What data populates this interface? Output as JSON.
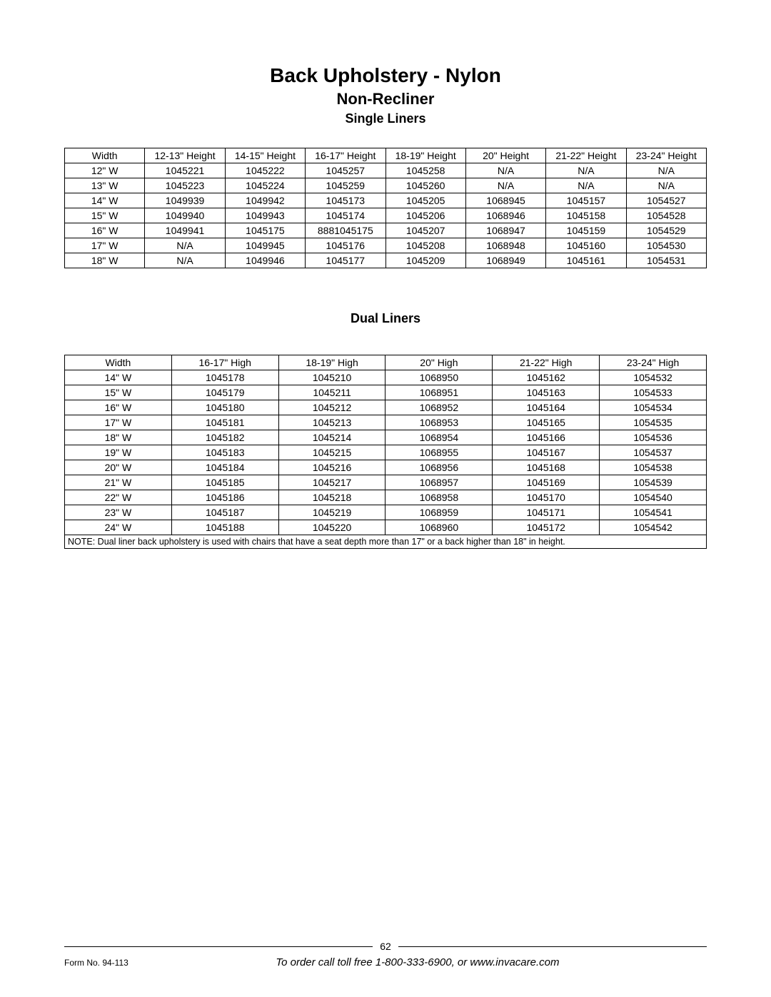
{
  "title": "Back Upholstery - Nylon",
  "subtitle": "Non-Recliner",
  "section1_heading": "Single Liners",
  "section2_heading": "Dual Liners",
  "table1": {
    "columns": [
      "Width",
      "12-13\" Height",
      "14-15\" Height",
      "16-17\" Height",
      "18-19\" Height",
      "20\" Height",
      "21-22\" Height",
      "23-24\" Height"
    ],
    "rows": [
      [
        "12\" W",
        "1045221",
        "1045222",
        "1045257",
        "1045258",
        "N/A",
        "N/A",
        "N/A"
      ],
      [
        "13\" W",
        "1045223",
        "1045224",
        "1045259",
        "1045260",
        "N/A",
        "N/A",
        "N/A"
      ],
      [
        "14\" W",
        "1049939",
        "1049942",
        "1045173",
        "1045205",
        "1068945",
        "1045157",
        "1054527"
      ],
      [
        "15\" W",
        "1049940",
        "1049943",
        "1045174",
        "1045206",
        "1068946",
        "1045158",
        "1054528"
      ],
      [
        "16\" W",
        "1049941",
        "1045175",
        "8881045175",
        "1045207",
        "1068947",
        "1045159",
        "1054529"
      ],
      [
        "17\" W",
        "N/A",
        "1049945",
        "1045176",
        "1045208",
        "1068948",
        "1045160",
        "1054530"
      ],
      [
        "18\" W",
        "N/A",
        "1049946",
        "1045177",
        "1045209",
        "1068949",
        "1045161",
        "1054531"
      ]
    ]
  },
  "table2": {
    "columns": [
      "Width",
      "16-17\" High",
      "18-19\" High",
      "20\" High",
      "21-22\" High",
      "23-24\" High"
    ],
    "rows": [
      [
        "14\" W",
        "1045178",
        "1045210",
        "1068950",
        "1045162",
        "1054532"
      ],
      [
        "15\" W",
        "1045179",
        "1045211",
        "1068951",
        "1045163",
        "1054533"
      ],
      [
        "16\" W",
        "1045180",
        "1045212",
        "1068952",
        "1045164",
        "1054534"
      ],
      [
        "17\" W",
        "1045181",
        "1045213",
        "1068953",
        "1045165",
        "1054535"
      ],
      [
        "18\" W",
        "1045182",
        "1045214",
        "1068954",
        "1045166",
        "1054536"
      ],
      [
        "19\" W",
        "1045183",
        "1045215",
        "1068955",
        "1045167",
        "1054537"
      ],
      [
        "20\" W",
        "1045184",
        "1045216",
        "1068956",
        "1045168",
        "1054538"
      ],
      [
        "21\" W",
        "1045185",
        "1045217",
        "1068957",
        "1045169",
        "1054539"
      ],
      [
        "22\" W",
        "1045186",
        "1045218",
        "1068958",
        "1045170",
        "1054540"
      ],
      [
        "23\" W",
        "1045187",
        "1045219",
        "1068959",
        "1045171",
        "1054541"
      ],
      [
        "24\" W",
        "1045188",
        "1045220",
        "1068960",
        "1045172",
        "1054542"
      ]
    ],
    "note": "NOTE:  Dual liner back upholstery is used with chairs that have a seat depth more than 17\" or a back higher than 18\" in height."
  },
  "footer": {
    "page_number": "62",
    "form_no": "Form No. 94-113",
    "order_text": "To order call toll free 1-800-333-6900, or www.invacare.com"
  }
}
